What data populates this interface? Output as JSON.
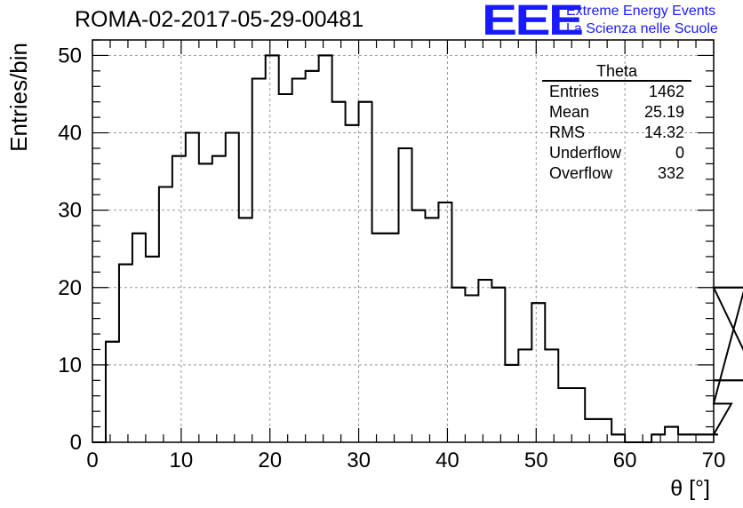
{
  "header": {
    "title": "ROMA-02-2017-05-29-00481",
    "logo": "EEE",
    "logo_line1": "Extreme Energy Events",
    "logo_line2": "La Scienza nelle Scuole"
  },
  "stats_box": {
    "title": "Theta",
    "rows": [
      {
        "label": "Entries",
        "value": "1462"
      },
      {
        "label": "Mean",
        "value": "25.19"
      },
      {
        "label": "RMS",
        "value": "14.32"
      },
      {
        "label": "Underflow",
        "value": "0"
      },
      {
        "label": "Overflow",
        "value": "332"
      }
    ]
  },
  "colors": {
    "logo": "#1a1aff",
    "line": "#000000",
    "grid": "#999999"
  },
  "chart_data": {
    "type": "bar",
    "style": "step-histogram",
    "xlabel": "θ [°]",
    "ylabel": "Entries/bin",
    "xlim": [
      0,
      70
    ],
    "ylim": [
      0,
      52
    ],
    "grid": true,
    "bin_width": 1.5,
    "bin_start": 0,
    "values": [
      0,
      13,
      23,
      27,
      24,
      33,
      37,
      40,
      36,
      37,
      40,
      29,
      47,
      50,
      45,
      47,
      48,
      50,
      44,
      41,
      44,
      27,
      27,
      38,
      30,
      29,
      31,
      20,
      19,
      21,
      20,
      10,
      12,
      18,
      12,
      7,
      7,
      3,
      3,
      1,
      0,
      0,
      1,
      2,
      1,
      1,
      1,
      1,
      5,
      20,
      8
    ],
    "x_ticks": [
      "0",
      "10",
      "20",
      "30",
      "40",
      "50",
      "60",
      "70"
    ],
    "y_ticks": [
      "0",
      "10",
      "20",
      "30",
      "40",
      "50"
    ]
  }
}
